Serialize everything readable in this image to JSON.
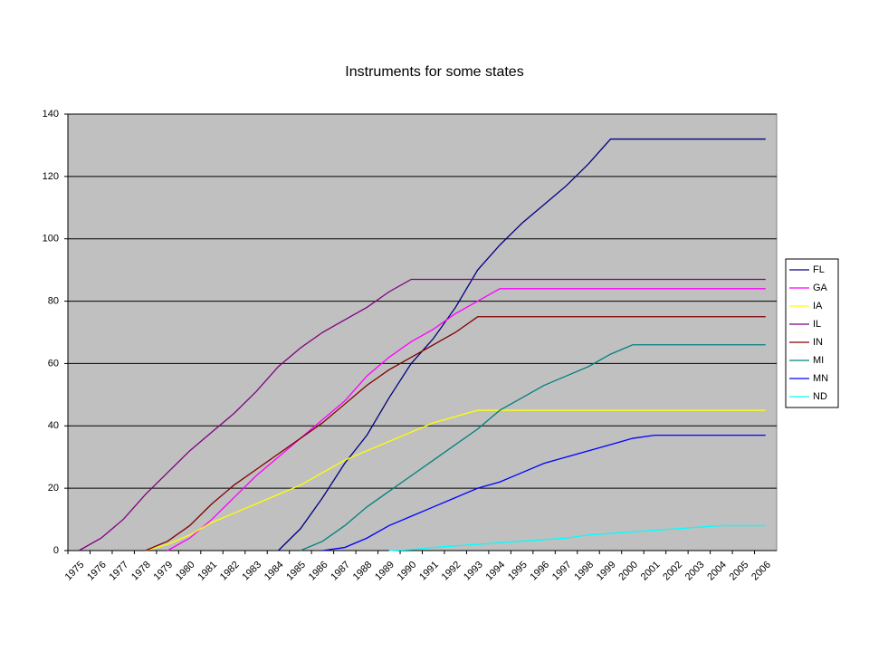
{
  "chart_data": {
    "type": "line",
    "title": "Instruments for some states",
    "categories": [
      "1975",
      "1976",
      "1977",
      "1978",
      "1979",
      "1980",
      "1981",
      "1982",
      "1983",
      "1984",
      "1985",
      "1986",
      "1987",
      "1988",
      "1989",
      "1990",
      "1991",
      "1992",
      "1993",
      "1994",
      "1995",
      "1996",
      "1997",
      "1998",
      "1999",
      "2000",
      "2001",
      "2002",
      "2003",
      "2004",
      "2005",
      "2006"
    ],
    "series": [
      {
        "name": "FL",
        "color": "#000080",
        "values": [
          null,
          null,
          null,
          null,
          null,
          null,
          null,
          null,
          null,
          0,
          7,
          17,
          28,
          37,
          49,
          60,
          68,
          78,
          90,
          98,
          105,
          111,
          117,
          124,
          132,
          132,
          132,
          132,
          132,
          132,
          132,
          132
        ]
      },
      {
        "name": "GA",
        "color": "#ff00ff",
        "values": [
          null,
          null,
          null,
          null,
          0,
          4,
          10,
          17,
          24,
          30,
          36,
          42,
          48,
          56,
          62,
          67,
          71,
          76,
          80,
          84,
          84,
          84,
          84,
          84,
          84,
          84,
          84,
          84,
          84,
          84,
          84,
          84
        ]
      },
      {
        "name": "IA",
        "color": "#ffff00",
        "values": [
          null,
          null,
          null,
          0,
          2,
          5,
          9,
          12,
          15,
          18,
          21,
          25,
          29,
          32,
          35,
          38,
          41,
          43,
          45,
          45,
          45,
          45,
          45,
          45,
          45,
          45,
          45,
          45,
          45,
          45,
          45,
          45
        ]
      },
      {
        "name": "IL",
        "color": "#800080",
        "values": [
          0,
          4,
          10,
          18,
          25,
          32,
          38,
          44,
          51,
          59,
          65,
          70,
          74,
          78,
          83,
          87,
          87,
          87,
          87,
          87,
          87,
          87,
          87,
          87,
          87,
          87,
          87,
          87,
          87,
          87,
          87,
          87
        ]
      },
      {
        "name": "IN",
        "color": "#800000",
        "values": [
          null,
          null,
          null,
          0,
          3,
          8,
          15,
          21,
          26,
          31,
          36,
          41,
          47,
          53,
          58,
          62,
          66,
          70,
          75,
          75,
          75,
          75,
          75,
          75,
          75,
          75,
          75,
          75,
          75,
          75,
          75,
          75
        ]
      },
      {
        "name": "MI",
        "color": "#008080",
        "values": [
          null,
          null,
          null,
          null,
          null,
          null,
          null,
          null,
          null,
          null,
          0,
          3,
          8,
          14,
          19,
          24,
          29,
          34,
          39,
          45,
          49,
          53,
          56,
          59,
          63,
          66,
          66,
          66,
          66,
          66,
          66,
          66
        ]
      },
      {
        "name": "MN",
        "color": "#0000ff",
        "values": [
          null,
          null,
          null,
          null,
          null,
          null,
          null,
          null,
          null,
          null,
          null,
          0,
          1,
          4,
          8,
          11,
          14,
          17,
          20,
          22,
          25,
          28,
          30,
          32,
          34,
          36,
          37,
          37,
          37,
          37,
          37,
          37
        ]
      },
      {
        "name": "ND",
        "color": "#00ffff",
        "values": [
          null,
          null,
          null,
          null,
          null,
          null,
          null,
          null,
          null,
          null,
          null,
          null,
          null,
          null,
          0,
          0.3,
          1,
          1.5,
          2,
          2.5,
          3,
          3.5,
          4,
          5,
          5.5,
          6,
          6.5,
          7,
          7.5,
          8,
          8,
          8
        ]
      }
    ],
    "ylim": [
      0,
      140
    ],
    "yticks": [
      0,
      20,
      40,
      60,
      80,
      100,
      120,
      140
    ],
    "grid": true,
    "legend": "right"
  }
}
